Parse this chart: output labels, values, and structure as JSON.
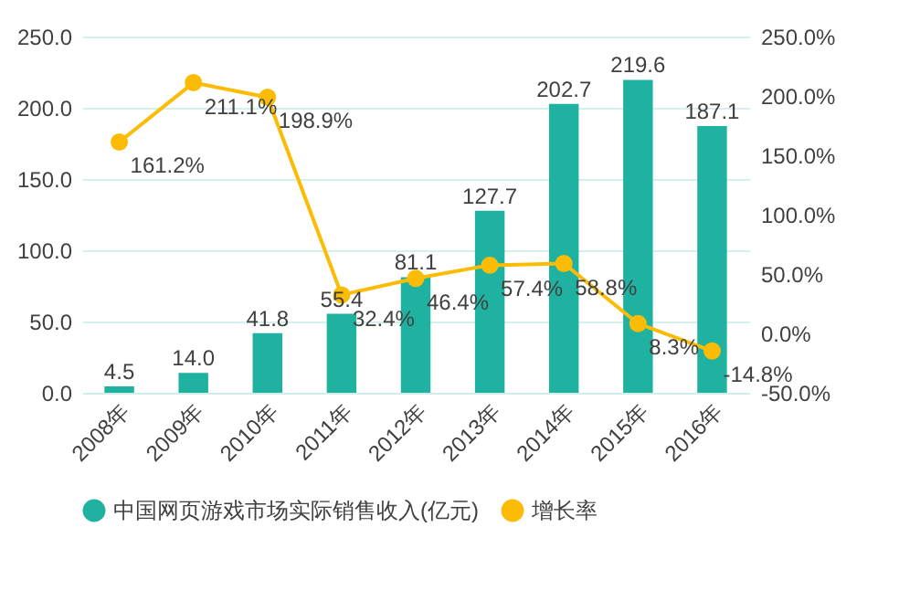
{
  "chart_data": {
    "type": "bar",
    "categories": [
      "2008年",
      "2009年",
      "2010年",
      "2011年",
      "2012年",
      "2013年",
      "2014年",
      "2015年",
      "2016年"
    ],
    "series": [
      {
        "name": "中国网页游戏市场实际销售收入(亿元)",
        "color": "#20b2a0",
        "values": [
          4.5,
          14.0,
          41.8,
          55.4,
          81.1,
          127.7,
          202.7,
          219.6,
          187.1
        ],
        "value_labels": [
          "4.5",
          "14.0",
          "41.8",
          "55.4",
          "81.1",
          "127.7",
          "202.7",
          "219.6",
          "187.1"
        ]
      },
      {
        "name": "增长率",
        "type": "line",
        "axis": "y2",
        "color": "#fcbc05",
        "values": [
          161.2,
          211.1,
          198.9,
          32.4,
          46.4,
          57.4,
          58.8,
          8.3,
          -14.8
        ],
        "value_labels": [
          "161.2%",
          "211.1%",
          "198.9%",
          "32.4%",
          "46.4%",
          "57.4%",
          "58.8%",
          "8.3%",
          "-14.8%"
        ]
      }
    ],
    "ylim": [
      0,
      250
    ],
    "yticks": [
      {
        "value": 0,
        "label": "0.0"
      },
      {
        "value": 50,
        "label": "50.0"
      },
      {
        "value": 100,
        "label": "100.0"
      },
      {
        "value": 150,
        "label": "150.0"
      },
      {
        "value": 200,
        "label": "200.0"
      },
      {
        "value": 250,
        "label": "250.0"
      }
    ],
    "y2lim": [
      -50,
      250
    ],
    "y2ticks": [
      {
        "value": -50,
        "label": "-50.0%"
      },
      {
        "value": 0,
        "label": "0.0%"
      },
      {
        "value": 50,
        "label": "50.0%"
      },
      {
        "value": 100,
        "label": "100.0%"
      },
      {
        "value": 150,
        "label": "150.0%"
      },
      {
        "value": 200,
        "label": "200.0%"
      },
      {
        "value": 250,
        "label": "250.0%"
      }
    ],
    "grid": "y",
    "legend": "bottom",
    "marker": "circle"
  }
}
